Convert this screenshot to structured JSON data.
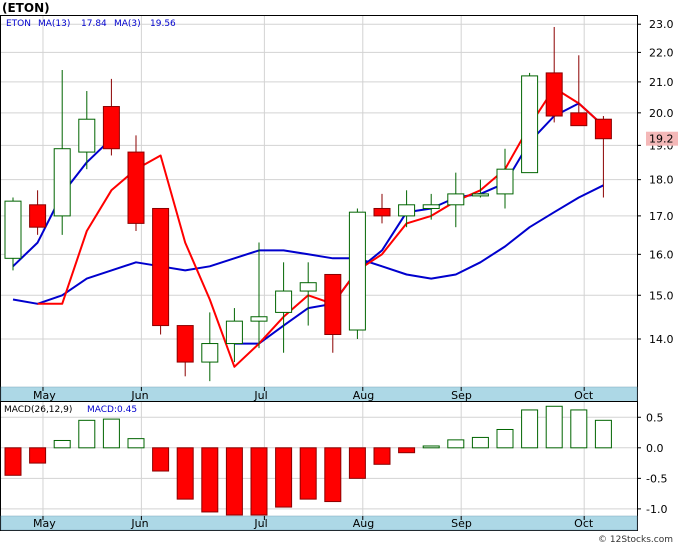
{
  "chart_data": {
    "type": "candlestick",
    "ticker": "(ETON)",
    "watermark": "© 12Stocks.com",
    "current_price_label": "19.2",
    "colors": {
      "up_candle": "#006400",
      "down_candle": "#ff0000",
      "ma_fast": "#ff0000",
      "ma_slow": "#0000cd",
      "macd_pos": "#006400",
      "macd_neg": "#ff0000",
      "axis_band": "#add8e6",
      "price_tag": "#f4b8b8"
    },
    "legend": {
      "ticker": "ETON",
      "ma13_label": "MA(13)",
      "ma13_value": "17.84",
      "ma3_label": "MA(3)",
      "ma3_value": "19.56",
      "macd_label": "MACD(26,12,9)",
      "macd_value_label": "MACD:0.45"
    },
    "price_axis": {
      "min": 13.0,
      "max": 23.3,
      "ticks": [
        "23.0",
        "22.0",
        "21.0",
        "20.0",
        "19.0",
        "18.0",
        "17.0",
        "16.0",
        "15.0",
        "14.0"
      ],
      "scale": "log"
    },
    "macd_axis": {
      "min": -1.1,
      "max": 0.75,
      "ticks": [
        "0.5",
        "0.0",
        "-0.5",
        "-1.0"
      ]
    },
    "months": [
      {
        "label": "May",
        "x_index": 1.3
      },
      {
        "label": "Jun",
        "x_index": 5.3
      },
      {
        "label": "Jul",
        "x_index": 10.3
      },
      {
        "label": "Aug",
        "x_index": 14.3
      },
      {
        "label": "Sep",
        "x_index": 18.3
      },
      {
        "label": "Oct",
        "x_index": 23.3
      }
    ],
    "candles": [
      {
        "o": 15.9,
        "h": 17.5,
        "l": 15.6,
        "c": 17.4
      },
      {
        "o": 17.3,
        "h": 17.7,
        "l": 16.5,
        "c": 16.7
      },
      {
        "o": 17.0,
        "h": 21.4,
        "l": 16.5,
        "c": 18.9
      },
      {
        "o": 18.8,
        "h": 20.7,
        "l": 18.3,
        "c": 19.8
      },
      {
        "o": 20.2,
        "h": 21.1,
        "l": 18.7,
        "c": 18.9
      },
      {
        "o": 18.8,
        "h": 19.3,
        "l": 16.6,
        "c": 16.8
      },
      {
        "o": 17.2,
        "h": 17.2,
        "l": 14.1,
        "c": 14.3
      },
      {
        "o": 14.3,
        "h": 14.3,
        "l": 13.2,
        "c": 13.5
      },
      {
        "o": 13.5,
        "h": 14.6,
        "l": 13.1,
        "c": 13.9
      },
      {
        "o": 13.9,
        "h": 14.7,
        "l": 13.5,
        "c": 14.4
      },
      {
        "o": 14.4,
        "h": 16.3,
        "l": 13.8,
        "c": 14.5
      },
      {
        "o": 14.6,
        "h": 15.8,
        "l": 13.7,
        "c": 15.1
      },
      {
        "o": 15.1,
        "h": 15.8,
        "l": 14.3,
        "c": 15.3
      },
      {
        "o": 15.5,
        "h": 15.5,
        "l": 13.7,
        "c": 14.1
      },
      {
        "o": 14.2,
        "h": 17.2,
        "l": 14.0,
        "c": 17.1
      },
      {
        "o": 17.2,
        "h": 17.6,
        "l": 16.8,
        "c": 17.0
      },
      {
        "o": 17.0,
        "h": 17.7,
        "l": 16.7,
        "c": 17.3
      },
      {
        "o": 17.2,
        "h": 17.6,
        "l": 16.9,
        "c": 17.3
      },
      {
        "o": 17.3,
        "h": 18.2,
        "l": 16.7,
        "c": 17.6
      },
      {
        "o": 17.6,
        "h": 18.0,
        "l": 17.5,
        "c": 17.6
      },
      {
        "o": 17.6,
        "h": 18.9,
        "l": 17.2,
        "c": 18.3
      },
      {
        "o": 18.2,
        "h": 21.3,
        "l": 18.2,
        "c": 21.2
      },
      {
        "o": 21.3,
        "h": 22.9,
        "l": 19.7,
        "c": 19.9
      },
      {
        "o": 20.0,
        "h": 21.9,
        "l": 19.6,
        "c": 19.6
      },
      {
        "o": 19.8,
        "h": 19.9,
        "l": 17.5,
        "c": 19.2
      }
    ],
    "ma_fast": [
      null,
      14.8,
      14.8,
      16.6,
      17.7,
      18.3,
      18.7,
      16.3,
      14.9,
      13.4,
      13.9,
      14.5,
      15.0,
      14.8,
      15.6,
      16.0,
      16.8,
      17.0,
      17.4,
      17.7,
      18.3,
      19.6,
      20.8,
      20.3,
      19.6
    ],
    "ma_slow": [
      15.7,
      16.3,
      17.6,
      18.5,
      19.2,
      null,
      null,
      null,
      null,
      13.9,
      13.9,
      14.3,
      14.7,
      14.8,
      15.6,
      16.1,
      17.1,
      17.2,
      17.5,
      17.6,
      17.9,
      19.1,
      19.9,
      20.3,
      19.6
    ],
    "ma13_series": [
      14.9,
      14.8,
      15.0,
      15.4,
      15.6,
      15.8,
      15.7,
      15.6,
      15.7,
      15.9,
      16.1,
      16.1,
      16.0,
      15.9,
      15.9,
      15.7,
      15.5,
      15.4,
      15.5,
      15.8,
      16.2,
      16.7,
      17.1,
      17.5,
      17.84
    ],
    "macd": [
      -0.45,
      -0.25,
      0.12,
      0.45,
      0.47,
      0.15,
      -0.38,
      -0.84,
      -1.05,
      -1.1,
      -1.1,
      -0.97,
      -0.84,
      -0.88,
      -0.5,
      -0.27,
      -0.08,
      0.03,
      0.13,
      0.17,
      0.3,
      0.62,
      0.68,
      0.62,
      0.45
    ]
  }
}
